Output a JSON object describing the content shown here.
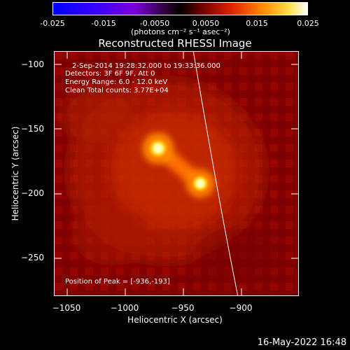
{
  "colorbar": {
    "ticks": [
      "-0.025",
      "-0.015",
      "-0.0050",
      "0.0050",
      "0.015",
      "0.025"
    ],
    "units": "(photons cm⁻² s⁻¹ asec⁻²)"
  },
  "title": "Reconstructed RHESSI Image",
  "info": {
    "time_range": "2-Sep-2014 19:28:32.000 to 19:33:36.000",
    "detectors": "Detectors: 3F 6F 9F, Att 0",
    "energy": "Energy Range: 6.0 - 12.0 keV",
    "clean": "Clean    Total counts: 3.77E+04",
    "peak": "Position of Peak = [-936,-193]"
  },
  "axes": {
    "xlabel": "Heliocentric X (arcsec)",
    "ylabel": "Heliocentric Y (arcsec)",
    "xticks": [
      "−1050",
      "−1000",
      "−950",
      "−900"
    ],
    "yticks": [
      "−100",
      "−150",
      "−200",
      "−250"
    ]
  },
  "datestamp": "16-May-2022 16:48",
  "colors": {
    "background": "#000000",
    "text": "#ffffff"
  }
}
